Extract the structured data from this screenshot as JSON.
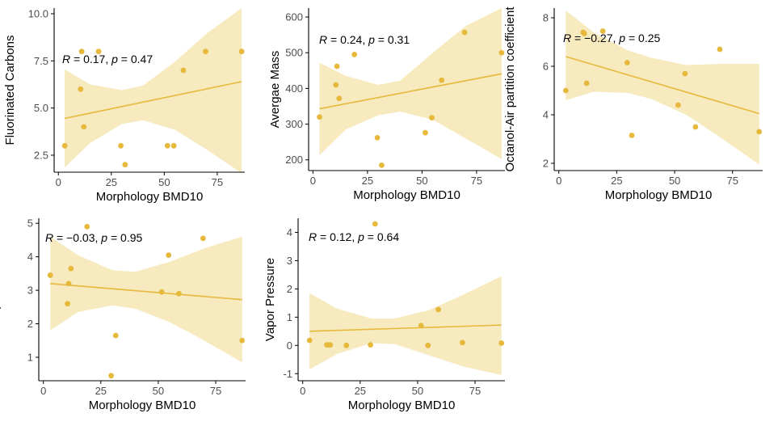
{
  "colors": {
    "points": "#e6b93c",
    "fit_line": "#e6b93c",
    "band": "#e6c246",
    "axis": "#000000",
    "tick_label": "#4d4d4d"
  },
  "chart_data": [
    {
      "type": "scatter",
      "title": "",
      "xlabel": "Morphology BMD10",
      "ylabel": "Fluorinated Carbons",
      "annotation": "R = 0.17, p = 0.47",
      "annotation_parts": {
        "r_symbol": "R",
        "r_text": " = 0.17, ",
        "p_symbol": "p",
        "p_text": " = 0.47"
      },
      "xlim": [
        -2,
        88
      ],
      "ylim": [
        1.6,
        10.3
      ],
      "x_ticks": [
        0,
        25,
        50,
        75
      ],
      "x_tick_labels": [
        "0",
        "25",
        "50",
        "75"
      ],
      "y_ticks": [
        2.5,
        5.0,
        7.5,
        10.0
      ],
      "y_tick_labels": [
        "2.5",
        "5.0",
        "7.5",
        "10.0"
      ],
      "points": [
        {
          "x": 3,
          "y": 3
        },
        {
          "x": 10.5,
          "y": 6
        },
        {
          "x": 11,
          "y": 8
        },
        {
          "x": 12,
          "y": 4
        },
        {
          "x": 19,
          "y": 8
        },
        {
          "x": 29.5,
          "y": 3
        },
        {
          "x": 31.5,
          "y": 2
        },
        {
          "x": 51.5,
          "y": 3
        },
        {
          "x": 54.5,
          "y": 3
        },
        {
          "x": 59,
          "y": 7
        },
        {
          "x": 69.5,
          "y": 8
        },
        {
          "x": 86.5,
          "y": 8
        }
      ],
      "fit": {
        "x": [
          3,
          86.5
        ],
        "y": [
          4.45,
          6.4
        ]
      },
      "band": {
        "x": [
          3,
          15,
          30,
          40,
          55,
          70,
          86.5
        ],
        "lower": [
          1.85,
          3.15,
          4.15,
          4.35,
          3.85,
          2.8,
          1.55
        ],
        "upper": [
          7.05,
          6.25,
          5.95,
          6.2,
          7.45,
          8.95,
          10.3
        ]
      }
    },
    {
      "type": "scatter",
      "title": "",
      "xlabel": "Morphology BMD10",
      "ylabel": "Avergae Mass",
      "annotation": "R = 0.24, p = 0.31",
      "annotation_parts": {
        "r_symbol": "R",
        "r_text": " = 0.24, ",
        "p_symbol": "p",
        "p_text": " = 0.31"
      },
      "xlim": [
        -2,
        88
      ],
      "ylim": [
        170,
        625
      ],
      "x_ticks": [
        0,
        25,
        50,
        75
      ],
      "x_tick_labels": [
        "0",
        "25",
        "50",
        "75"
      ],
      "y_ticks": [
        200,
        300,
        400,
        500,
        600
      ],
      "y_tick_labels": [
        "200",
        "300",
        "400",
        "500",
        "600"
      ],
      "points": [
        {
          "x": 3,
          "y": 320
        },
        {
          "x": 10.5,
          "y": 410
        },
        {
          "x": 11,
          "y": 462
        },
        {
          "x": 12,
          "y": 372
        },
        {
          "x": 19,
          "y": 495
        },
        {
          "x": 29.5,
          "y": 262
        },
        {
          "x": 31.5,
          "y": 185
        },
        {
          "x": 51.5,
          "y": 276
        },
        {
          "x": 54.5,
          "y": 318
        },
        {
          "x": 59,
          "y": 423
        },
        {
          "x": 69.5,
          "y": 557
        },
        {
          "x": 86.5,
          "y": 500
        }
      ],
      "fit": {
        "x": [
          3,
          86.5
        ],
        "y": [
          343,
          441
        ]
      },
      "band": {
        "x": [
          3,
          15,
          30,
          40,
          55,
          70,
          86.5
        ],
        "lower": [
          213,
          285,
          325,
          335,
          312,
          260,
          202
        ],
        "upper": [
          472,
          435,
          410,
          422,
          500,
          575,
          625
        ]
      }
    },
    {
      "type": "scatter",
      "title": "",
      "xlabel": "Morphology BMD10",
      "ylabel": "Octanol-Air partition coefficient",
      "annotation": "R = −0.27, p = 0.25",
      "annotation_parts": {
        "r_symbol": "R",
        "r_text": " = −0.27, ",
        "p_symbol": "p",
        "p_text": " = 0.25"
      },
      "xlim": [
        -2,
        88
      ],
      "ylim": [
        1.7,
        8.4
      ],
      "x_ticks": [
        0,
        25,
        50,
        75
      ],
      "x_tick_labels": [
        "0",
        "25",
        "50",
        "75"
      ],
      "y_ticks": [
        2,
        4,
        6,
        8
      ],
      "y_tick_labels": [
        "2",
        "4",
        "6",
        "8"
      ],
      "points": [
        {
          "x": 3,
          "y": 5
        },
        {
          "x": 10.5,
          "y": 7.4
        },
        {
          "x": 11,
          "y": 7.35
        },
        {
          "x": 12,
          "y": 5.3
        },
        {
          "x": 19,
          "y": 7.45
        },
        {
          "x": 29.5,
          "y": 6.15
        },
        {
          "x": 31.5,
          "y": 3.15
        },
        {
          "x": 51.5,
          "y": 4.4
        },
        {
          "x": 54.5,
          "y": 5.7
        },
        {
          "x": 59,
          "y": 3.5
        },
        {
          "x": 69.5,
          "y": 6.7
        },
        {
          "x": 86.5,
          "y": 3.3
        }
      ],
      "fit": {
        "x": [
          3,
          86.5
        ],
        "y": [
          6.4,
          4.05
        ]
      },
      "band": {
        "x": [
          3,
          15,
          30,
          40,
          55,
          70,
          86.5
        ],
        "lower": [
          4.6,
          4.95,
          4.9,
          4.65,
          4.0,
          3.05,
          1.95
        ],
        "upper": [
          8.3,
          7.4,
          6.65,
          6.35,
          6.05,
          6.1,
          6.1
        ]
      }
    },
    {
      "type": "scatter",
      "title": "",
      "xlabel": "Morphology BMD10",
      "ylabel": "Octanol-Water partition coefficient",
      "annotation": "R = −0.03, p = 0.95",
      "annotation_parts": {
        "r_symbol": "R",
        "r_text": " = −0.03, ",
        "p_symbol": "p",
        "p_text": " = 0.95"
      },
      "xlim": [
        -2,
        88
      ],
      "ylim": [
        0.3,
        5.15
      ],
      "x_ticks": [
        0,
        25,
        50,
        75
      ],
      "x_tick_labels": [
        "0",
        "25",
        "50",
        "75"
      ],
      "y_ticks": [
        1,
        2,
        3,
        4,
        5
      ],
      "y_tick_labels": [
        "1",
        "2",
        "3",
        "4",
        "5"
      ],
      "points": [
        {
          "x": 3,
          "y": 3.45
        },
        {
          "x": 10.5,
          "y": 2.6
        },
        {
          "x": 11,
          "y": 3.2
        },
        {
          "x": 12,
          "y": 3.65
        },
        {
          "x": 19,
          "y": 4.9
        },
        {
          "x": 29.5,
          "y": 0.45
        },
        {
          "x": 31.5,
          "y": 1.65
        },
        {
          "x": 51.5,
          "y": 2.95
        },
        {
          "x": 54.5,
          "y": 4.05
        },
        {
          "x": 59,
          "y": 2.9
        },
        {
          "x": 69.5,
          "y": 4.55
        },
        {
          "x": 86.5,
          "y": 1.5
        }
      ],
      "fit": {
        "x": [
          3,
          86.5
        ],
        "y": [
          3.2,
          2.72
        ]
      },
      "band": {
        "x": [
          3,
          15,
          30,
          40,
          55,
          70,
          86.5
        ],
        "lower": [
          1.8,
          2.35,
          2.55,
          2.45,
          2.05,
          1.5,
          0.85
        ],
        "upper": [
          4.6,
          4.05,
          3.6,
          3.55,
          3.85,
          4.25,
          4.6
        ]
      }
    },
    {
      "type": "scatter",
      "title": "",
      "xlabel": "Morphology BMD10",
      "ylabel": "Vapor Pressure",
      "annotation": "R = 0.12, p = 0.64",
      "annotation_parts": {
        "r_symbol": "R",
        "r_text": " = 0.12, ",
        "p_symbol": "p",
        "p_text": " = 0.64"
      },
      "xlim": [
        -2,
        88
      ],
      "ylim": [
        -1.25,
        4.5
      ],
      "x_ticks": [
        0,
        25,
        50,
        75
      ],
      "x_tick_labels": [
        "0",
        "25",
        "50",
        "75"
      ],
      "y_ticks": [
        -1,
        0,
        1,
        2,
        3,
        4
      ],
      "y_tick_labels": [
        "-1",
        "0",
        "1",
        "2",
        "3",
        "4"
      ],
      "points": [
        {
          "x": 3,
          "y": 0.18
        },
        {
          "x": 10.5,
          "y": 0.02
        },
        {
          "x": 11,
          "y": 0.02
        },
        {
          "x": 12,
          "y": 0.02
        },
        {
          "x": 19,
          "y": 0.0
        },
        {
          "x": 29.5,
          "y": 0.02
        },
        {
          "x": 31.5,
          "y": 4.3
        },
        {
          "x": 51.5,
          "y": 0.7
        },
        {
          "x": 54.5,
          "y": 0.0
        },
        {
          "x": 59,
          "y": 1.27
        },
        {
          "x": 69.5,
          "y": 0.1
        },
        {
          "x": 86.5,
          "y": 0.08
        }
      ],
      "fit": {
        "x": [
          3,
          86.5
        ],
        "y": [
          0.5,
          0.72
        ]
      },
      "band": {
        "x": [
          3,
          15,
          30,
          40,
          55,
          70,
          86.5
        ],
        "lower": [
          -0.85,
          -0.3,
          0.08,
          0.05,
          -0.35,
          -0.75,
          -1.05
        ],
        "upper": [
          1.85,
          1.3,
          0.95,
          0.95,
          1.25,
          1.8,
          2.45
        ]
      }
    }
  ]
}
